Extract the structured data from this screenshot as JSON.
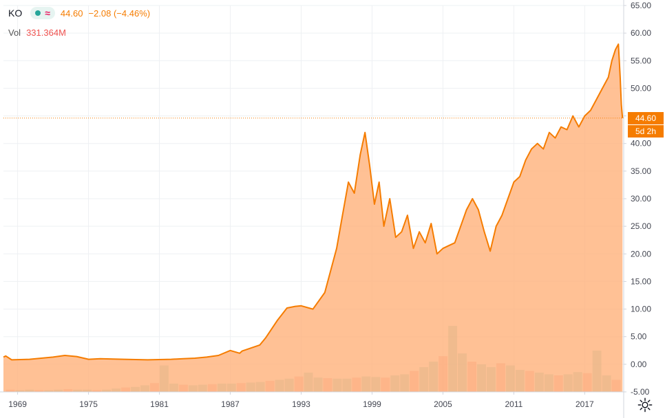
{
  "header": {
    "symbol": "KO",
    "price": "44.60",
    "change": "−2.08 (−4.46%)",
    "vol_label": "Vol",
    "vol_value": "331.364M"
  },
  "price_tag": "44.60",
  "countdown_tag": "5d 2h",
  "colors": {
    "line": "#f57c00",
    "area": "#ffb27a",
    "volume_up": "#26a69a",
    "volume_down": "#ef5350",
    "grid": "#eef0f3",
    "axis": "#d1d4dc",
    "text": "#434651",
    "tag_bg": "#f57c00",
    "vol_value": "#ef5350",
    "pill_dot": "#26a69a",
    "pill_wave": "#e91e63"
  },
  "chart_data": {
    "type": "area",
    "title": "KO",
    "x_ticks": [
      "1969",
      "1975",
      "1981",
      "1987",
      "1993",
      "1999",
      "2005",
      "2011",
      "2017"
    ],
    "y_ticks": [
      "65.00",
      "60.00",
      "55.00",
      "50.00",
      "45.00",
      "40.00",
      "35.00",
      "30.00",
      "25.00",
      "20.00",
      "15.00",
      "10.00",
      "5.00",
      "0.00",
      "-5.00"
    ],
    "ylim": [
      -5,
      65
    ],
    "xlim": [
      1967.8,
      2020.3
    ],
    "last_price": 44.6,
    "series": [
      {
        "x": [
          1967.8,
          1968.0,
          1968.5,
          1970,
          1972,
          1973,
          1974,
          1975,
          1976,
          1978,
          1980,
          1982,
          1983,
          1984,
          1985,
          1986,
          1987.0,
          1987.8,
          1988,
          1989.5,
          1990,
          1991,
          1991.8,
          1992.5,
          1993,
          1994,
          1995,
          1996,
          1996.5,
          1997,
          1997.5,
          1998.0,
          1998.4,
          1998.8,
          1999.2,
          1999.6,
          2000.0,
          2000.5,
          2001.0,
          2001.5,
          2002.0,
          2002.5,
          2003.0,
          2003.5,
          2004.0,
          2004.5,
          2005.0,
          2005.5,
          2006.0,
          2006.5,
          2007.0,
          2007.5,
          2008.0,
          2008.5,
          2009.0,
          2009.5,
          2010.0,
          2010.5,
          2011.0,
          2011.5,
          2012.0,
          2012.5,
          2013.0,
          2013.5,
          2014.0,
          2014.5,
          2015.0,
          2015.5,
          2016.0,
          2016.5,
          2017.0,
          2017.5,
          2018.0,
          2018.5,
          2019.0,
          2019.3,
          2019.6,
          2019.85,
          2020.0,
          2020.1,
          2020.2
        ],
        "values": [
          1.3,
          1.5,
          0.8,
          0.9,
          1.3,
          1.6,
          1.4,
          0.9,
          1.0,
          0.9,
          0.8,
          0.9,
          1.0,
          1.1,
          1.3,
          1.6,
          2.5,
          2.0,
          2.4,
          3.5,
          4.8,
          8.0,
          10.2,
          10.5,
          10.6,
          10.0,
          13.0,
          21.0,
          27.0,
          33.0,
          31.0,
          38.0,
          42.0,
          36.0,
          29.0,
          33.0,
          25.0,
          30.0,
          23.0,
          24.0,
          27.0,
          21.0,
          24.0,
          22.0,
          25.5,
          20.0,
          21.0,
          21.5,
          22.0,
          25.0,
          28.0,
          30.0,
          28.0,
          24.0,
          20.5,
          25.0,
          27.0,
          30.0,
          33.0,
          34.0,
          37.0,
          39.0,
          40.0,
          39.0,
          42.0,
          41.0,
          43.0,
          42.5,
          45.0,
          43.0,
          45.0,
          46.0,
          48.0,
          50.0,
          52.0,
          55.0,
          57.0,
          58.0,
          52.0,
          47.0,
          44.6
        ]
      }
    ],
    "volume": {
      "note_free": null,
      "values": [
        0.4,
        0.3,
        0.4,
        0.3,
        0.3,
        0.4,
        0.5,
        0.4,
        0.4,
        0.3,
        0.4,
        0.6,
        0.8,
        0.9,
        1.2,
        1.6,
        4.8,
        1.5,
        1.3,
        1.2,
        1.3,
        1.4,
        1.5,
        1.5,
        1.6,
        1.7,
        1.8,
        2.0,
        2.2,
        2.4,
        2.8,
        3.5,
        2.6,
        2.5,
        2.4,
        2.4,
        2.6,
        2.8,
        2.7,
        2.6,
        3.0,
        3.2,
        3.8,
        4.5,
        5.5,
        6.5,
        12.0,
        7.0,
        5.5,
        5.0,
        4.5,
        5.2,
        4.8,
        4.0,
        3.8,
        3.5,
        3.2,
        3.0,
        3.2,
        3.6,
        3.4,
        7.5,
        3.0,
        2.2
      ]
    }
  }
}
